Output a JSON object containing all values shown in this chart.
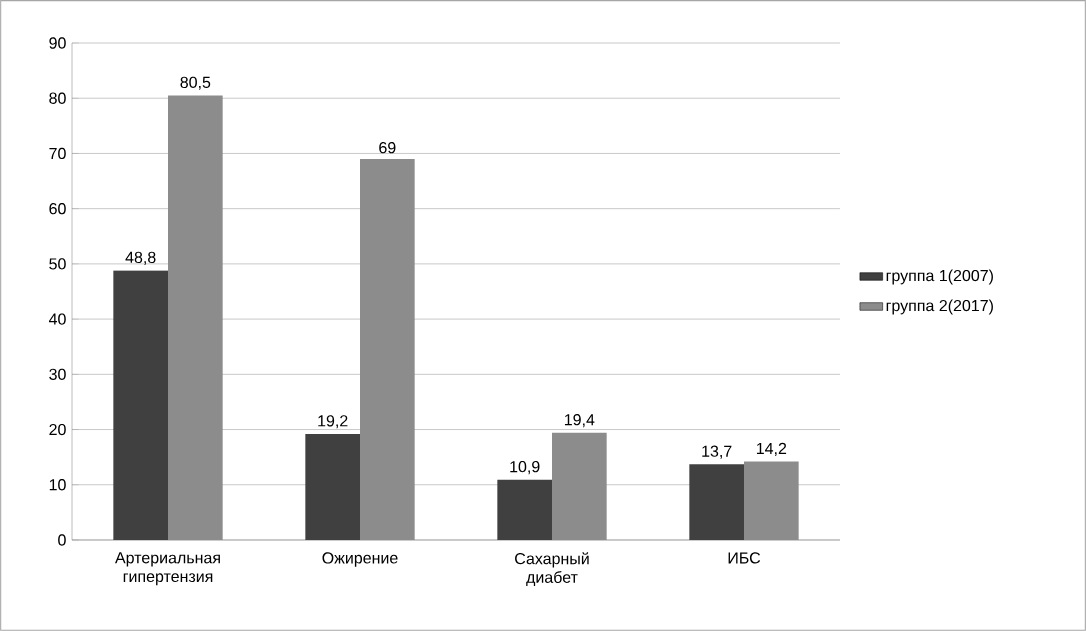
{
  "chart_data": {
    "type": "bar",
    "categories": [
      "Артериальная гипертензия",
      "Ожирение",
      "Сахарный диабет",
      "ИБС"
    ],
    "series": [
      {
        "name": "группа 1(2007)",
        "color": "#404040",
        "values": [
          48.8,
          19.2,
          10.9,
          13.7
        ],
        "value_labels": [
          "48,8",
          "19,2",
          "10,9",
          "13,7"
        ]
      },
      {
        "name": "группа 2(2017)",
        "color": "#8c8c8c",
        "values": [
          80.5,
          69,
          19.4,
          14.2
        ],
        "value_labels": [
          "80,5",
          "69",
          "19,4",
          "14,2"
        ]
      }
    ],
    "ylim": [
      0,
      90
    ],
    "yticks": [
      0,
      10,
      20,
      30,
      40,
      50,
      60,
      70,
      80,
      90
    ],
    "grid": "y",
    "legend": "right"
  }
}
